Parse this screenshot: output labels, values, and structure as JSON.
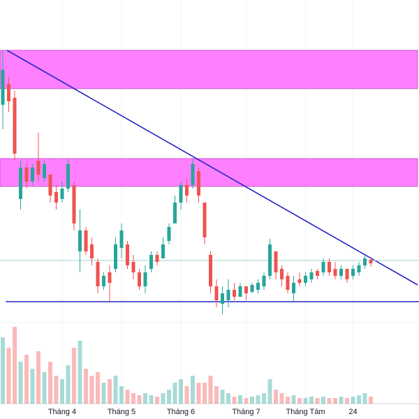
{
  "chart_data": {
    "type": "candlestick",
    "categories": [
      null,
      null,
      null,
      null,
      null,
      null,
      null,
      null,
      null,
      null,
      "Tháng 4",
      null,
      null,
      null,
      null,
      null,
      null,
      null,
      null,
      null,
      "Tháng 5",
      null,
      null,
      null,
      null,
      null,
      null,
      null,
      null,
      null,
      "Tháng 6",
      null,
      null,
      null,
      null,
      null,
      null,
      null,
      null,
      null,
      null,
      "Tháng 7",
      null,
      null,
      null,
      null,
      null,
      null,
      null,
      null,
      null,
      "Tháng Tám",
      null,
      null,
      null,
      null,
      null,
      null,
      null,
      "24",
      null,
      null,
      null
    ],
    "open": [
      31.0,
      34.0,
      32.0,
      17.5,
      22.0,
      20.0,
      23.0,
      20.5,
      21.0,
      18.5,
      17.5,
      19.0,
      19.5,
      10.0,
      13.0,
      11.0,
      8.5,
      5.0,
      7.0,
      7.5,
      10.5,
      11.0,
      8.5,
      7.0,
      5.0,
      7.5,
      9.5,
      9.0,
      11.5,
      14.0,
      17.0,
      19.5,
      19.5,
      21.5,
      17.0,
      9.5,
      5.0,
      2.5,
      3.0,
      4.5,
      3.5,
      5.0,
      4.2,
      4.5,
      5.0,
      6.5,
      10.0,
      7.5,
      6.5,
      4.0,
      6.0,
      5.5,
      6.0,
      7.2,
      7.0,
      8.5,
      7.5,
      6.5,
      7.5,
      6.5,
      7.0,
      8.0,
      8.8
    ],
    "high": [
      38.8,
      35.0,
      33.0,
      23.0,
      22.5,
      22.5,
      27.0,
      23.0,
      21.0,
      19.5,
      20.0,
      23.2,
      20.0,
      16.0,
      13.5,
      12.0,
      9.0,
      7.0,
      8.0,
      12.0,
      14.0,
      11.5,
      9.5,
      7.5,
      8.0,
      10.0,
      10.0,
      12.0,
      14.0,
      18.0,
      20.0,
      20.5,
      23.2,
      22.0,
      17.0,
      10.0,
      6.0,
      5.0,
      6.0,
      5.5,
      5.5,
      5.0,
      5.5,
      6.0,
      7.0,
      11.8,
      10.0,
      8.0,
      7.0,
      6.5,
      7.0,
      7.0,
      7.5,
      7.5,
      9.0,
      9.0,
      8.5,
      8.0,
      7.5,
      8.0,
      8.5,
      9.5,
      9.2
    ],
    "low": [
      27.5,
      30.0,
      23.0,
      16.0,
      19.0,
      19.5,
      20.0,
      20.0,
      17.0,
      16.0,
      17.0,
      18.5,
      13.0,
      7.0,
      9.5,
      8.0,
      4.0,
      4.5,
      2.8,
      7.0,
      9.0,
      7.5,
      6.0,
      4.5,
      4.0,
      7.0,
      8.0,
      9.0,
      11.0,
      14.0,
      16.0,
      17.0,
      19.0,
      17.0,
      11.0,
      4.0,
      2.0,
      1.0,
      2.0,
      3.0,
      3.5,
      3.0,
      4.0,
      4.0,
      4.5,
      6.0,
      6.0,
      5.0,
      4.0,
      2.8,
      5.0,
      5.0,
      5.5,
      6.0,
      6.5,
      6.5,
      6.0,
      6.0,
      5.5,
      6.0,
      6.5,
      7.5,
      7.8
    ],
    "close": [
      36.0,
      31.5,
      24.0,
      22.0,
      20.0,
      22.0,
      21.0,
      22.5,
      18.0,
      17.0,
      19.0,
      22.5,
      14.0,
      13.0,
      10.0,
      9.0,
      5.0,
      6.5,
      5.5,
      11.0,
      13.0,
      8.0,
      7.0,
      5.0,
      7.0,
      9.5,
      8.5,
      11.0,
      13.5,
      17.0,
      19.5,
      18.0,
      22.5,
      18.0,
      12.0,
      5.0,
      3.0,
      4.0,
      4.5,
      3.5,
      5.0,
      4.0,
      5.2,
      5.5,
      6.5,
      11.0,
      7.0,
      6.0,
      4.5,
      5.5,
      5.5,
      6.5,
      7.0,
      6.5,
      8.5,
      7.0,
      6.5,
      7.5,
      6.0,
      7.5,
      8.0,
      9.0,
      8.3
    ],
    "volume": [
      95,
      80,
      110,
      60,
      70,
      50,
      75,
      45,
      60,
      40,
      35,
      55,
      80,
      90,
      50,
      40,
      45,
      30,
      35,
      40,
      25,
      20,
      15,
      12,
      15,
      12,
      10,
      15,
      20,
      30,
      35,
      25,
      40,
      30,
      30,
      40,
      25,
      20,
      15,
      10,
      12,
      8,
      10,
      12,
      15,
      35,
      20,
      15,
      10,
      12,
      8,
      8,
      10,
      8,
      10,
      8,
      8,
      10,
      8,
      10,
      12,
      15,
      10
    ],
    "ylim": [
      0,
      46
    ],
    "volume_lim": [
      0,
      120
    ],
    "up_color": "#26a69a",
    "down_color": "#ef5350",
    "zones": [
      {
        "from": 33.3,
        "to": 38.8,
        "color": "#ff80ff"
      },
      {
        "from": 19.3,
        "to": 23.3,
        "color": "#ff80ff"
      }
    ],
    "lines": [
      {
        "x": [
          0.7,
          69.9
        ],
        "y": [
          38.8,
          5.2
        ],
        "color": "#2424c8"
      },
      {
        "x": [
          0.5,
          70.1
        ],
        "y": [
          2.8,
          2.8
        ],
        "color": "#2424c8"
      },
      {
        "x": [
          -0.5,
          70.1
        ],
        "y": [
          8.7,
          8.7
        ],
        "color": "#9fd6cf"
      }
    ]
  }
}
